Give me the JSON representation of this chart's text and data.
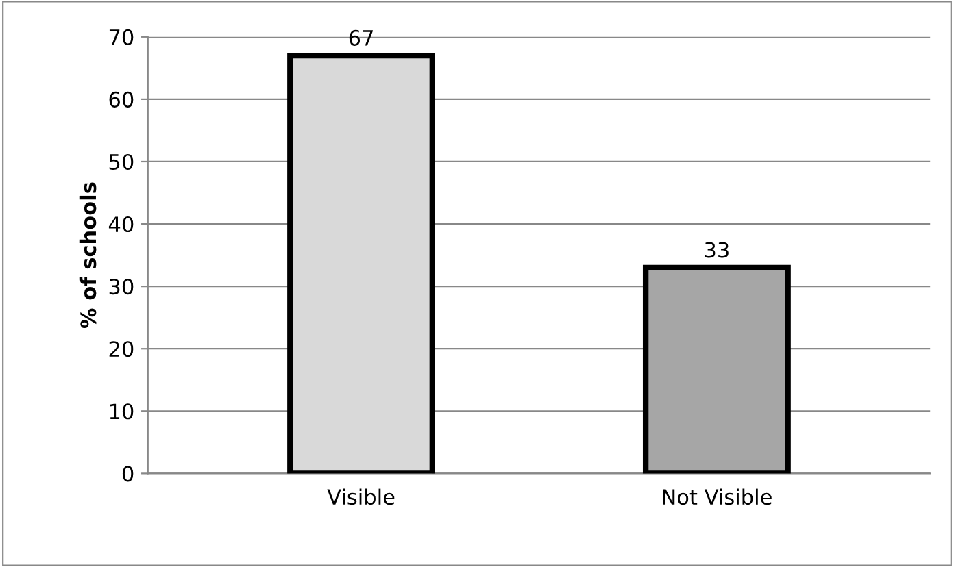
{
  "chart_data": {
    "type": "bar",
    "ylabel": "% of schools",
    "categories": [
      "Visible",
      "Not Visible"
    ],
    "values": [
      67,
      33
    ],
    "colors": [
      "#d9d9d9",
      "#a6a6a6"
    ],
    "ylim": [
      0,
      70
    ],
    "yticks": [
      0,
      10,
      20,
      30,
      40,
      50,
      60,
      70
    ],
    "grid": "y",
    "data_labels": true,
    "legend": false
  }
}
